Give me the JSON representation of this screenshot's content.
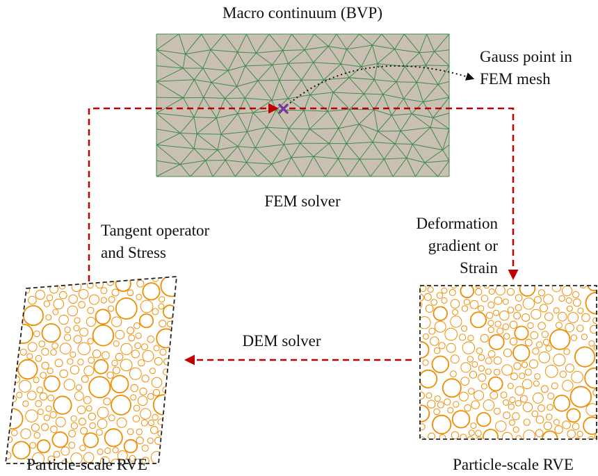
{
  "labels": {
    "title": "Macro continuum (BVP)",
    "gauss_line1": "Gauss point in",
    "gauss_line2": "FEM mesh",
    "fem_solver": "FEM solver",
    "tangent_line1": "Tangent operator",
    "tangent_line2": "and Stress",
    "deform_line1": "Deformation",
    "deform_line2": "gradient or",
    "deform_line3": "Strain",
    "dem_solver": "DEM solver",
    "rve_left": "Particle-scale RVE",
    "rve_right": "Particle-scale RVE"
  },
  "colors": {
    "mesh_fill": "#c9c0b3",
    "mesh_line": "#3f8a4a",
    "arrow": "#c00000",
    "gauss_marker": "#7a3a9a",
    "particle": "#f08c00",
    "rve_border": "#222222"
  }
}
